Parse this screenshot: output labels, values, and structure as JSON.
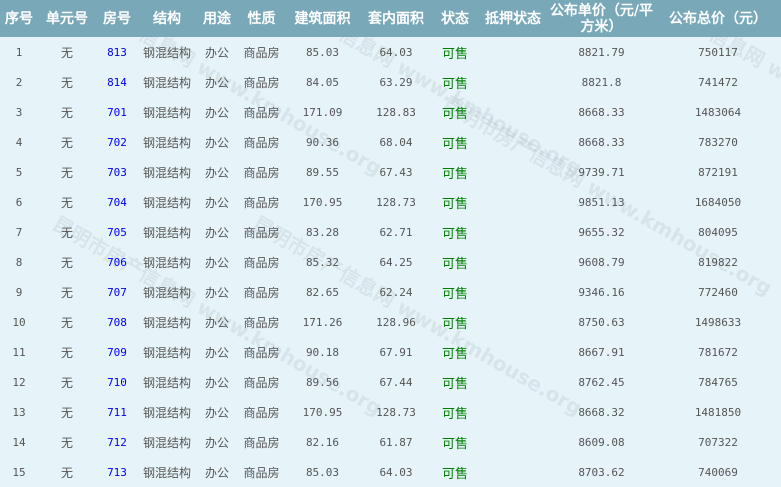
{
  "watermark": "昆明市房产信息网 www.kmhouse.org",
  "headers": [
    "序号",
    "单元号",
    "房号",
    "结构",
    "用途",
    "性质",
    "建筑面积",
    "套内面积",
    "状态",
    "抵押状态",
    "公布单价（元/平方米）",
    "公布总价（元）"
  ],
  "colors": {
    "header_bg": "#79a9b9",
    "body_bg": "#e6f4fa",
    "room_link": "#0000ee",
    "status_available": "#008000"
  },
  "rows": [
    {
      "no": "1",
      "unit": "无",
      "room": "813",
      "structure": "钢混结构",
      "use": "办公",
      "nature": "商品房",
      "build_area": "85.03",
      "inner_area": "64.03",
      "status": "可售",
      "mortgage": "",
      "unit_price": "8821.79",
      "total_price": "750117"
    },
    {
      "no": "2",
      "unit": "无",
      "room": "814",
      "structure": "钢混结构",
      "use": "办公",
      "nature": "商品房",
      "build_area": "84.05",
      "inner_area": "63.29",
      "status": "可售",
      "mortgage": "",
      "unit_price": "8821.8",
      "total_price": "741472"
    },
    {
      "no": "3",
      "unit": "无",
      "room": "701",
      "structure": "钢混结构",
      "use": "办公",
      "nature": "商品房",
      "build_area": "171.09",
      "inner_area": "128.83",
      "status": "可售",
      "mortgage": "",
      "unit_price": "8668.33",
      "total_price": "1483064"
    },
    {
      "no": "4",
      "unit": "无",
      "room": "702",
      "structure": "钢混结构",
      "use": "办公",
      "nature": "商品房",
      "build_area": "90.36",
      "inner_area": "68.04",
      "status": "可售",
      "mortgage": "",
      "unit_price": "8668.33",
      "total_price": "783270"
    },
    {
      "no": "5",
      "unit": "无",
      "room": "703",
      "structure": "钢混结构",
      "use": "办公",
      "nature": "商品房",
      "build_area": "89.55",
      "inner_area": "67.43",
      "status": "可售",
      "mortgage": "",
      "unit_price": "9739.71",
      "total_price": "872191"
    },
    {
      "no": "6",
      "unit": "无",
      "room": "704",
      "structure": "钢混结构",
      "use": "办公",
      "nature": "商品房",
      "build_area": "170.95",
      "inner_area": "128.73",
      "status": "可售",
      "mortgage": "",
      "unit_price": "9851.13",
      "total_price": "1684050"
    },
    {
      "no": "7",
      "unit": "无",
      "room": "705",
      "structure": "钢混结构",
      "use": "办公",
      "nature": "商品房",
      "build_area": "83.28",
      "inner_area": "62.71",
      "status": "可售",
      "mortgage": "",
      "unit_price": "9655.32",
      "total_price": "804095"
    },
    {
      "no": "8",
      "unit": "无",
      "room": "706",
      "structure": "钢混结构",
      "use": "办公",
      "nature": "商品房",
      "build_area": "85.32",
      "inner_area": "64.25",
      "status": "可售",
      "mortgage": "",
      "unit_price": "9608.79",
      "total_price": "819822"
    },
    {
      "no": "9",
      "unit": "无",
      "room": "707",
      "structure": "钢混结构",
      "use": "办公",
      "nature": "商品房",
      "build_area": "82.65",
      "inner_area": "62.24",
      "status": "可售",
      "mortgage": "",
      "unit_price": "9346.16",
      "total_price": "772460"
    },
    {
      "no": "10",
      "unit": "无",
      "room": "708",
      "structure": "钢混结构",
      "use": "办公",
      "nature": "商品房",
      "build_area": "171.26",
      "inner_area": "128.96",
      "status": "可售",
      "mortgage": "",
      "unit_price": "8750.63",
      "total_price": "1498633"
    },
    {
      "no": "11",
      "unit": "无",
      "room": "709",
      "structure": "钢混结构",
      "use": "办公",
      "nature": "商品房",
      "build_area": "90.18",
      "inner_area": "67.91",
      "status": "可售",
      "mortgage": "",
      "unit_price": "8667.91",
      "total_price": "781672"
    },
    {
      "no": "12",
      "unit": "无",
      "room": "710",
      "structure": "钢混结构",
      "use": "办公",
      "nature": "商品房",
      "build_area": "89.56",
      "inner_area": "67.44",
      "status": "可售",
      "mortgage": "",
      "unit_price": "8762.45",
      "total_price": "784765"
    },
    {
      "no": "13",
      "unit": "无",
      "room": "711",
      "structure": "钢混结构",
      "use": "办公",
      "nature": "商品房",
      "build_area": "170.95",
      "inner_area": "128.73",
      "status": "可售",
      "mortgage": "",
      "unit_price": "8668.32",
      "total_price": "1481850"
    },
    {
      "no": "14",
      "unit": "无",
      "room": "712",
      "structure": "钢混结构",
      "use": "办公",
      "nature": "商品房",
      "build_area": "82.16",
      "inner_area": "61.87",
      "status": "可售",
      "mortgage": "",
      "unit_price": "8609.08",
      "total_price": "707322"
    },
    {
      "no": "15",
      "unit": "无",
      "room": "713",
      "structure": "钢混结构",
      "use": "办公",
      "nature": "商品房",
      "build_area": "85.03",
      "inner_area": "64.03",
      "status": "可售",
      "mortgage": "",
      "unit_price": "8703.62",
      "total_price": "740069"
    }
  ]
}
